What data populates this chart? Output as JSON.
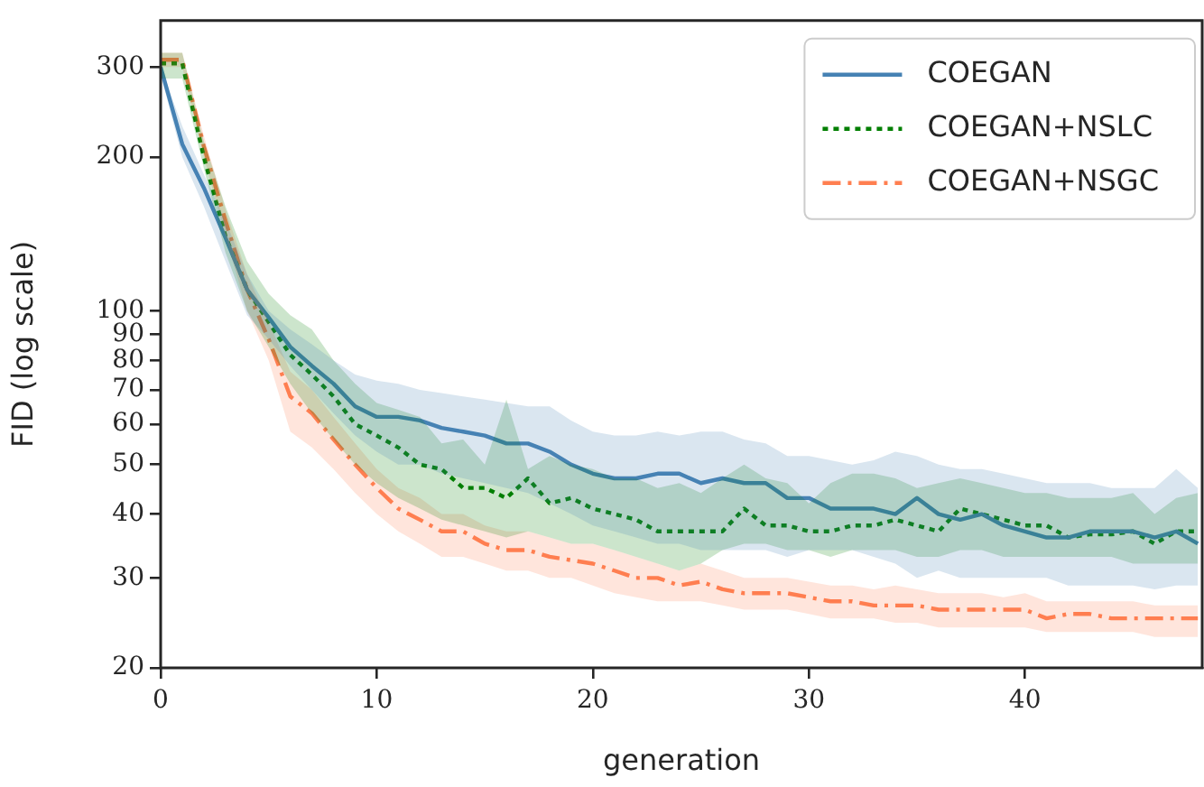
{
  "chart_data": {
    "type": "line",
    "xlabel": "generation",
    "ylabel": "FID (log scale)",
    "log": "y",
    "grid": false,
    "legend": "top right",
    "marker": "none",
    "x": [
      0,
      1,
      2,
      3,
      4,
      5,
      6,
      7,
      8,
      9,
      10,
      11,
      12,
      13,
      14,
      15,
      16,
      17,
      18,
      19,
      20,
      21,
      22,
      23,
      24,
      25,
      26,
      27,
      28,
      29,
      30,
      31,
      32,
      33,
      34,
      35,
      36,
      37,
      38,
      39,
      40,
      41,
      42,
      43,
      44,
      45,
      46,
      47,
      48
    ],
    "xlim": [
      0,
      48.2
    ],
    "xticks": [
      0,
      10,
      20,
      30,
      40
    ],
    "ylim": [
      20,
      370
    ],
    "yticks": [
      20,
      30,
      40,
      50,
      60,
      70,
      80,
      90,
      100,
      200,
      300
    ],
    "series": [
      {
        "name": "COEGAN",
        "color": "#4682b4",
        "line_style": "solid",
        "values": [
          300,
          212,
          174,
          139,
          110,
          97,
          85,
          78,
          72,
          65,
          62,
          62,
          61,
          59,
          58,
          57,
          55,
          55,
          53,
          50,
          48,
          47,
          47,
          48,
          48,
          46,
          47,
          46,
          46,
          43,
          43,
          41,
          41,
          41,
          40,
          43,
          40,
          39,
          40,
          38,
          37,
          36,
          36,
          37,
          37,
          37,
          36,
          37,
          35
        ],
        "lower": [
          290,
          200,
          160,
          125,
          98,
          88,
          78,
          70,
          63,
          57,
          53,
          50,
          50,
          48,
          47,
          46,
          45,
          44,
          42,
          40,
          38,
          37,
          36,
          35,
          35,
          34,
          34,
          34,
          34,
          33,
          34,
          34,
          34,
          33,
          32,
          30,
          31,
          30,
          30,
          30,
          30,
          30,
          29,
          29,
          29,
          29,
          28.5,
          29,
          29
        ],
        "upper": [
          300,
          230,
          185,
          150,
          118,
          100,
          92,
          86,
          80,
          75,
          73,
          72,
          70,
          69,
          68,
          67,
          66,
          65,
          65,
          61,
          58,
          57,
          57,
          58,
          57,
          58,
          58,
          56,
          55,
          52,
          52,
          51,
          50,
          51,
          53,
          52,
          50,
          49,
          49,
          48,
          47,
          46,
          46,
          46,
          45,
          45,
          45,
          49,
          45
        ]
      },
      {
        "name": "COEGAN+NSLC",
        "color": "#007f00",
        "line_style": "dotted",
        "values": [
          305,
          305,
          200,
          140,
          110,
          95,
          82,
          75,
          68,
          60,
          57,
          54,
          50,
          49,
          45,
          45,
          43,
          47,
          42,
          43,
          41,
          40,
          39,
          37,
          37,
          37,
          37,
          41,
          38,
          38,
          37,
          37,
          38,
          38,
          39,
          38,
          37,
          41,
          40,
          39,
          38,
          38,
          36,
          36.5,
          36.5,
          37,
          35,
          37,
          37
        ],
        "lower": [
          285,
          285,
          190,
          130,
          100,
          85,
          72,
          63,
          56,
          50,
          46,
          43,
          41,
          39,
          38,
          37,
          36,
          37,
          36,
          35,
          35,
          34,
          33,
          32,
          31,
          32,
          34,
          35,
          35,
          34,
          34,
          33,
          34,
          34,
          34,
          33,
          33,
          34,
          34,
          33,
          33,
          33,
          33,
          33,
          33,
          32,
          32,
          32,
          32
        ],
        "upper": [
          320,
          320,
          215,
          160,
          125,
          108,
          98,
          92,
          80,
          72,
          66,
          64,
          62,
          55,
          56,
          50,
          67,
          49,
          52,
          50,
          49,
          47,
          47,
          45,
          46,
          44,
          47,
          50,
          47,
          46,
          42,
          46,
          48,
          48,
          47,
          45,
          46,
          47,
          46,
          45,
          44,
          44,
          43,
          43,
          43,
          44,
          40,
          43,
          44
        ]
      },
      {
        "name": "COEGAN+NSGC",
        "color": "#ff7f50",
        "line_style": "dashdot",
        "values": [
          310,
          310,
          210,
          150,
          110,
          88,
          68,
          63,
          56,
          50,
          45,
          41,
          39,
          37,
          37,
          35,
          34,
          34,
          33,
          32.5,
          32,
          31,
          30,
          30,
          29,
          29.5,
          28.5,
          28,
          28,
          28,
          27.5,
          27,
          27,
          26.5,
          26.5,
          26.5,
          26,
          26,
          26,
          26,
          26,
          25,
          25.5,
          25.5,
          25,
          25,
          25,
          25,
          25
        ],
        "lower": [
          300,
          300,
          200,
          140,
          100,
          80,
          58,
          54,
          49,
          44,
          40,
          37,
          35,
          33,
          33,
          32,
          31,
          31,
          30,
          30,
          29,
          28,
          27.5,
          27,
          27,
          27,
          26.5,
          26,
          26,
          26,
          25.5,
          25,
          25,
          25,
          24.5,
          24.5,
          24,
          24,
          24,
          24,
          24,
          23.5,
          23.5,
          23.5,
          23.5,
          23.5,
          23,
          23,
          23
        ],
        "upper": [
          320,
          320,
          220,
          158,
          118,
          95,
          76,
          70,
          62,
          55,
          49,
          45,
          43,
          40,
          40,
          38,
          37,
          37,
          36,
          35,
          35,
          34,
          33,
          32,
          31,
          32,
          31,
          30,
          30,
          30,
          29.5,
          29,
          29,
          28.5,
          29,
          28.5,
          28,
          28,
          28,
          27.5,
          28,
          27,
          27,
          27,
          27,
          27,
          26.5,
          26.5,
          26.5
        ]
      }
    ]
  }
}
